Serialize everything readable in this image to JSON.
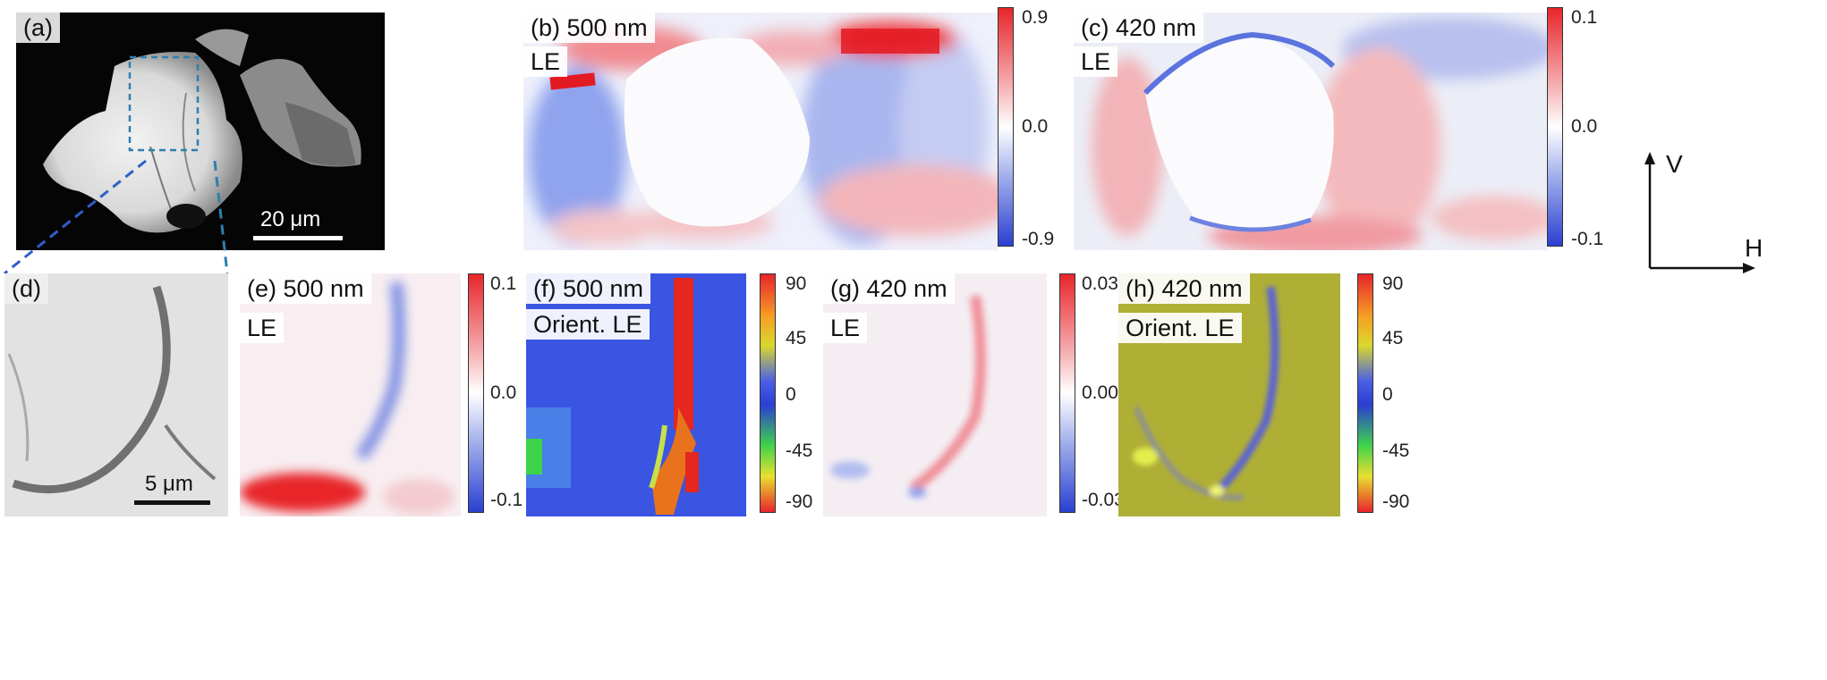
{
  "panels": {
    "a": {
      "tag": "(a)",
      "scale_text": "20 μm"
    },
    "b": {
      "tag": "(b) 500 nm",
      "sub": "LE",
      "cbar": [
        "0.9",
        "0.0",
        "-0.9"
      ]
    },
    "c": {
      "tag": "(c) 420 nm",
      "sub": "LE",
      "cbar": [
        "0.1",
        "0.0",
        "-0.1"
      ]
    },
    "d": {
      "tag": "(d)",
      "scale_text": "5 μm"
    },
    "e": {
      "tag": "(e) 500 nm",
      "sub": "LE",
      "cbar": [
        "0.1",
        "0.0",
        "-0.1"
      ]
    },
    "f": {
      "tag": "(f) 500 nm",
      "sub": "Orient. LE",
      "cbar": [
        "90",
        "45",
        "0",
        "-45",
        "-90"
      ]
    },
    "g": {
      "tag": "(g) 420 nm",
      "sub": "LE",
      "cbar": [
        "0.03",
        "0.00",
        "-0.03"
      ]
    },
    "h": {
      "tag": "(h) 420 nm",
      "sub": "Orient. LE",
      "cbar": [
        "90",
        "45",
        "0",
        "-45",
        "-90"
      ]
    }
  },
  "axes": {
    "vertical": "V",
    "horizontal": "H"
  },
  "colors": {
    "diverging_pos": "#e8252b",
    "diverging_neg": "#2a3fd1",
    "orient_base_blue": "#3c58e6",
    "orient_yellow": "#b3b338"
  }
}
